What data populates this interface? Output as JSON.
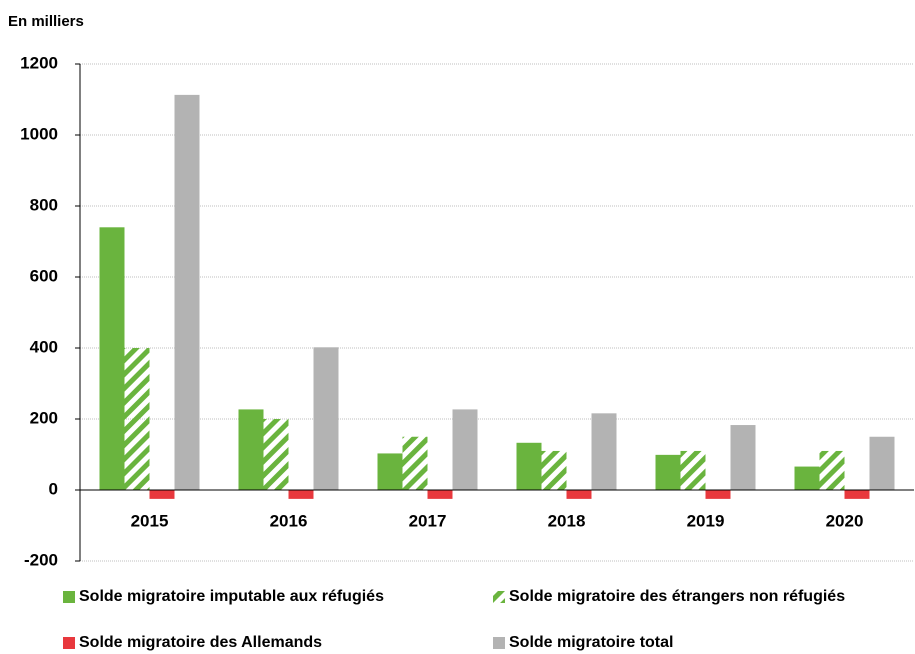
{
  "chart_data": {
    "type": "bar",
    "subtitle": "En milliers",
    "categories": [
      "2015",
      "2016",
      "2017",
      "2018",
      "2019",
      "2020"
    ],
    "series": [
      {
        "name": "Solde migratoire imputable aux réfugiés",
        "color": "#6ab43e",
        "values": [
          740,
          227,
          103,
          133,
          99,
          66
        ]
      },
      {
        "name": "Solde migratoire des étrangers non réfugiés",
        "color": "#6ab43e",
        "pattern": "hatch",
        "values": [
          400,
          200,
          150,
          110,
          110,
          110
        ]
      },
      {
        "name": "Solde migratoire des Allemands",
        "color": "#e8383d",
        "values": [
          -25,
          -25,
          -25,
          -25,
          -25,
          -25
        ]
      },
      {
        "name": "Solde migratoire total",
        "color": "#b3b3b3",
        "values": [
          1113,
          402,
          227,
          216,
          183,
          150
        ]
      }
    ],
    "ylim": [
      -200,
      1200
    ],
    "yticks": [
      -200,
      0,
      200,
      400,
      600,
      800,
      1000,
      1200
    ],
    "grid": true
  }
}
